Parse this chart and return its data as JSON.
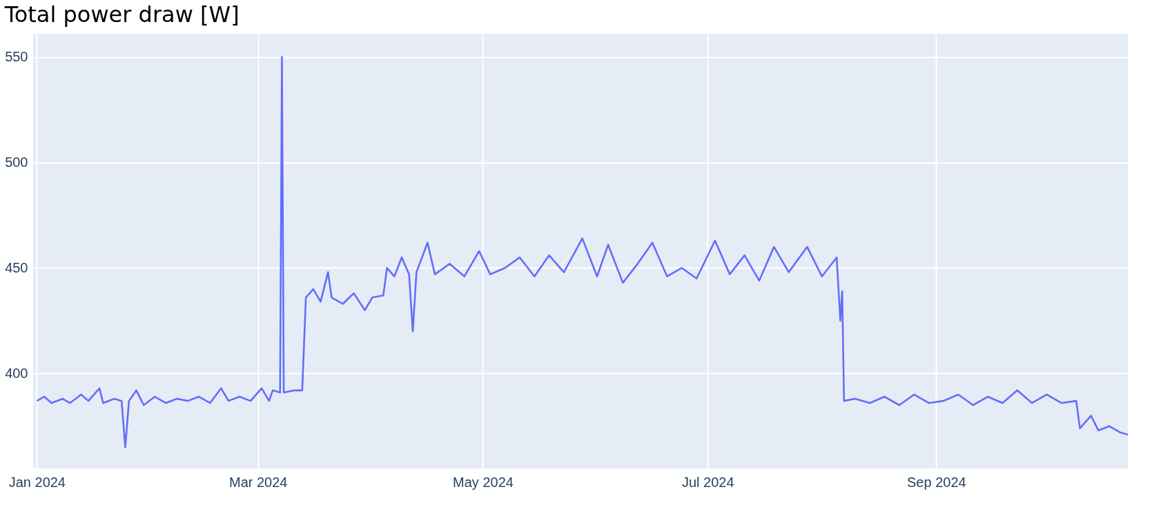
{
  "chart_data": {
    "type": "line",
    "title": "Total power draw [W]",
    "x": [
      "2024-01-01",
      "2024-01-03",
      "2024-01-05",
      "2024-01-08",
      "2024-01-10",
      "2024-01-13",
      "2024-01-15",
      "2024-01-18",
      "2024-01-19",
      "2024-01-22",
      "2024-01-24",
      "2024-01-25",
      "2024-01-26",
      "2024-01-28",
      "2024-01-30",
      "2024-02-02",
      "2024-02-05",
      "2024-02-08",
      "2024-02-11",
      "2024-02-14",
      "2024-02-17",
      "2024-02-20",
      "2024-02-22",
      "2024-02-25",
      "2024-02-28",
      "2024-03-02",
      "2024-03-04",
      "2024-03-05",
      "2024-03-07",
      "2024-03-07T12:00",
      "2024-03-08",
      "2024-03-11",
      "2024-03-13",
      "2024-03-14",
      "2024-03-16",
      "2024-03-18",
      "2024-03-20",
      "2024-03-21",
      "2024-03-24",
      "2024-03-27",
      "2024-03-30",
      "2024-04-01",
      "2024-04-04",
      "2024-04-05",
      "2024-04-07",
      "2024-04-09",
      "2024-04-11",
      "2024-04-12",
      "2024-04-13",
      "2024-04-16",
      "2024-04-18",
      "2024-04-22",
      "2024-04-26",
      "2024-04-30",
      "2024-05-03",
      "2024-05-07",
      "2024-05-11",
      "2024-05-15",
      "2024-05-19",
      "2024-05-23",
      "2024-05-28",
      "2024-06-01",
      "2024-06-04",
      "2024-06-08",
      "2024-06-12",
      "2024-06-16",
      "2024-06-20",
      "2024-06-24",
      "2024-06-28",
      "2024-07-03",
      "2024-07-07",
      "2024-07-11",
      "2024-07-15",
      "2024-07-19",
      "2024-07-23",
      "2024-07-28",
      "2024-08-01",
      "2024-08-05",
      "2024-08-06",
      "2024-08-06T12:00",
      "2024-08-07",
      "2024-08-10",
      "2024-08-14",
      "2024-08-18",
      "2024-08-22",
      "2024-08-26",
      "2024-08-30",
      "2024-09-03",
      "2024-09-07",
      "2024-09-11",
      "2024-09-15",
      "2024-09-19",
      "2024-09-23",
      "2024-09-27",
      "2024-10-01",
      "2024-10-05",
      "2024-10-09",
      "2024-10-10",
      "2024-10-13",
      "2024-10-15",
      "2024-10-18",
      "2024-10-21",
      "2024-10-23"
    ],
    "series": [
      {
        "color": "#636efa",
        "values": [
          387,
          389,
          386,
          388,
          386,
          390,
          387,
          393,
          386,
          388,
          387,
          365,
          387,
          392,
          385,
          389,
          386,
          388,
          387,
          389,
          386,
          393,
          387,
          389,
          387,
          393,
          387,
          392,
          391,
          550,
          391,
          392,
          392,
          436,
          440,
          434,
          448,
          436,
          433,
          438,
          430,
          436,
          437,
          450,
          446,
          455,
          447,
          420,
          448,
          462,
          447,
          452,
          446,
          458,
          447,
          450,
          455,
          446,
          456,
          448,
          464,
          446,
          461,
          443,
          452,
          462,
          446,
          450,
          445,
          463,
          447,
          456,
          444,
          460,
          448,
          460,
          446,
          455,
          425,
          439,
          387,
          388,
          386,
          389,
          385,
          390,
          386,
          387,
          390,
          385,
          389,
          386,
          392,
          386,
          390,
          386,
          387,
          374,
          380,
          373,
          375,
          372,
          371
        ]
      }
    ],
    "xlim": [
      "2023-12-31",
      "2024-10-23"
    ],
    "xticks": [
      {
        "value": "2024-01-01",
        "label": "Jan 2024"
      },
      {
        "value": "2024-03-01",
        "label": "Mar 2024"
      },
      {
        "value": "2024-05-01",
        "label": "May 2024"
      },
      {
        "value": "2024-07-01",
        "label": "Jul 2024"
      },
      {
        "value": "2024-09-01",
        "label": "Sep 2024"
      }
    ],
    "ylim": [
      355,
      561
    ],
    "yticks": [
      400,
      450,
      500,
      550
    ],
    "grid": true,
    "marker": "none",
    "line_style": "solid"
  }
}
